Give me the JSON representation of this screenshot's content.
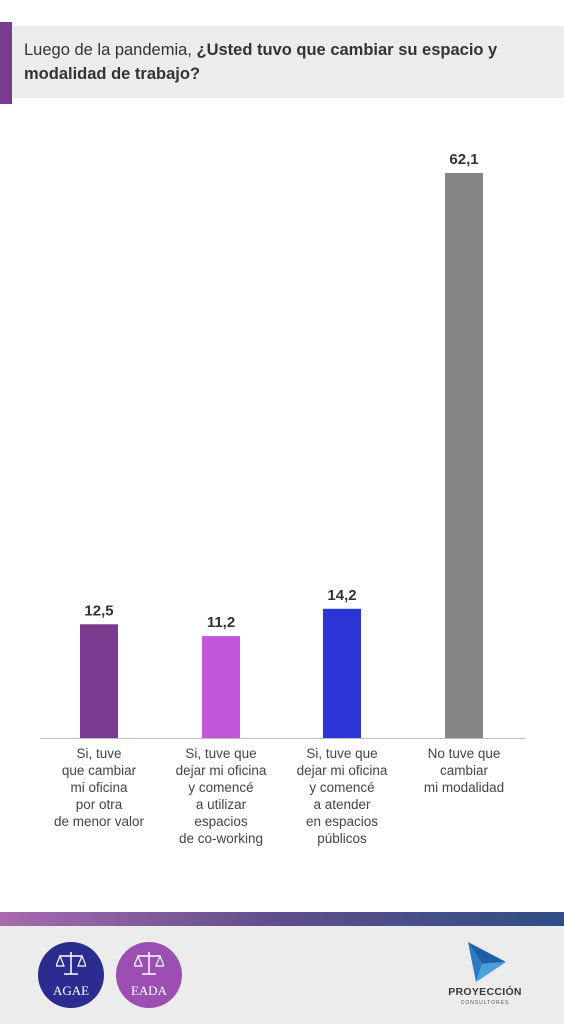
{
  "header": {
    "title_prefix": "Luego de la pandemia,",
    "title_question": "¿Usted tuvo que cambiar su espacio y modalidad de trabajo?"
  },
  "chart_data": {
    "type": "bar",
    "categories": [
      [
        "Si, tuve",
        "que cambiar",
        "mi oficina",
        "por otra",
        "de menor valor"
      ],
      [
        "Si, tuve que",
        "dejar mi oficina",
        "y comencé",
        "a utilizar",
        "espacios",
        "de co-working"
      ],
      [
        "Si, tuve que",
        "dejar mi oficina",
        "y comencé",
        "a atender",
        "en espacios",
        "públicos"
      ],
      [
        "No tuve que",
        "cambiar",
        "mi modalidad"
      ]
    ],
    "values": [
      12.5,
      11.2,
      14.2,
      62.1
    ],
    "value_labels": [
      "12,5",
      "11,2",
      "14,2",
      "62,1"
    ],
    "colors": [
      "#7a3a8f",
      "#c056d8",
      "#2b35d6",
      "#858585"
    ],
    "ylim": [
      0,
      62.1
    ],
    "grid": false,
    "title": "",
    "xlabel": "",
    "ylabel": ""
  },
  "footer": {
    "logo_left": "AGAE",
    "logo_right": "EADA",
    "brand": "PROYECCIÓN",
    "brand_sub": "CONSULTORES"
  }
}
